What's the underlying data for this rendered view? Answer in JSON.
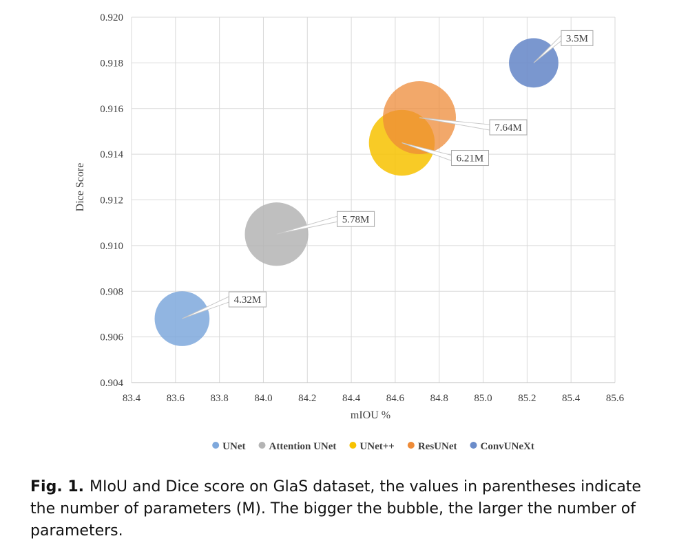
{
  "chart_data": {
    "type": "bubble",
    "xlabel": "mIOU %",
    "ylabel": "Dice Score",
    "xlim": [
      83.4,
      85.6
    ],
    "ylim": [
      0.904,
      0.92
    ],
    "xticks": [
      83.4,
      83.6,
      83.8,
      84.0,
      84.2,
      84.4,
      84.6,
      84.8,
      85.0,
      85.2,
      85.4,
      85.6
    ],
    "yticks": [
      0.904,
      0.906,
      0.908,
      0.91,
      0.912,
      0.914,
      0.916,
      0.918,
      0.92
    ],
    "xtick_labels": [
      "83.4",
      "83.6",
      "83.8",
      "84.0",
      "84.2",
      "84.4",
      "84.6",
      "84.8",
      "85.0",
      "85.2",
      "85.4",
      "85.6"
    ],
    "ytick_labels": [
      "0.904",
      "0.906",
      "0.908",
      "0.910",
      "0.912",
      "0.914",
      "0.916",
      "0.918",
      "0.920"
    ],
    "grid": true,
    "legend_position": "bottom",
    "series": [
      {
        "name": "UNet",
        "x": 83.63,
        "y": 0.9068,
        "size": 4.32,
        "label": "4.32M",
        "color": "#7ea8dc",
        "opacity": 0.85
      },
      {
        "name": "Attention UNet",
        "x": 84.06,
        "y": 0.9105,
        "size": 5.78,
        "label": "5.78M",
        "color": "#b4b4b4",
        "opacity": 0.85
      },
      {
        "name": "UNet++",
        "x": 84.63,
        "y": 0.9145,
        "size": 6.21,
        "label": "6.21M",
        "color": "#f7c200",
        "opacity": 0.85
      },
      {
        "name": "ResUNet",
        "x": 84.71,
        "y": 0.9156,
        "size": 7.64,
        "label": "7.64M",
        "color": "#ee8b38",
        "opacity": 0.75
      },
      {
        "name": "ConvUNeXt",
        "x": 85.23,
        "y": 0.918,
        "size": 3.5,
        "label": "3.5M",
        "color": "#6b8cca",
        "opacity": 0.9
      }
    ]
  },
  "caption": {
    "label": "Fig. 1.",
    "text": "MIoU and Dice score on GlaS dataset, the values in parentheses indicate the number of parameters (M). The bigger the bubble, the larger the number of parameters."
  }
}
